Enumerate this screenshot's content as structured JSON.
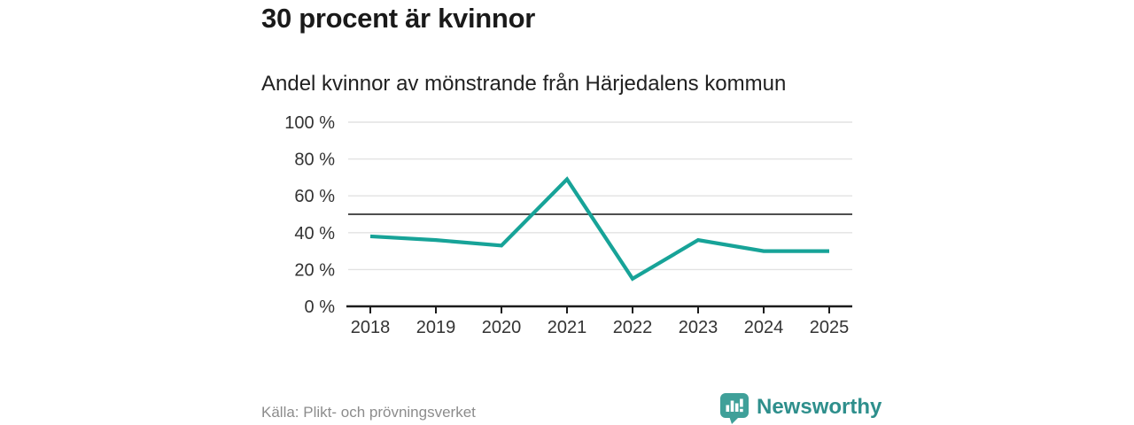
{
  "chart_data": {
    "type": "line",
    "title": "30 procent är kvinnor",
    "subtitle": "Andel kvinnor av mönstrande från Härjedalens kommun",
    "x": [
      "2018",
      "2019",
      "2020",
      "2021",
      "2022",
      "2023",
      "2024",
      "2025"
    ],
    "series": [
      {
        "name": "Andel kvinnor av mönstrande",
        "values": [
          38,
          36,
          33,
          69,
          15,
          36,
          30,
          30
        ]
      }
    ],
    "unit": "%",
    "ylim": [
      0,
      100
    ],
    "yticks": [
      0,
      20,
      40,
      60,
      80,
      100
    ],
    "ytick_label_suffix": " %",
    "reference_line_y": 50,
    "grid": "horizontal",
    "legend": "none"
  },
  "footer": {
    "source": "Källa: Plikt- och prövningsverket",
    "brand": "Newsworthy"
  },
  "colors": {
    "background": "#ffffff",
    "line": "#17a398",
    "title_text": "#1a1a1a",
    "subtitle_text": "#212121",
    "tick_text": "#333333",
    "gridline": "#e2e2e2",
    "reference_line": "#4f4f4f",
    "axis": "#1c1c1c",
    "source_text": "#8c8c8c",
    "brand_icon": "#3fa099",
    "brand_text": "#2e8f8c"
  }
}
